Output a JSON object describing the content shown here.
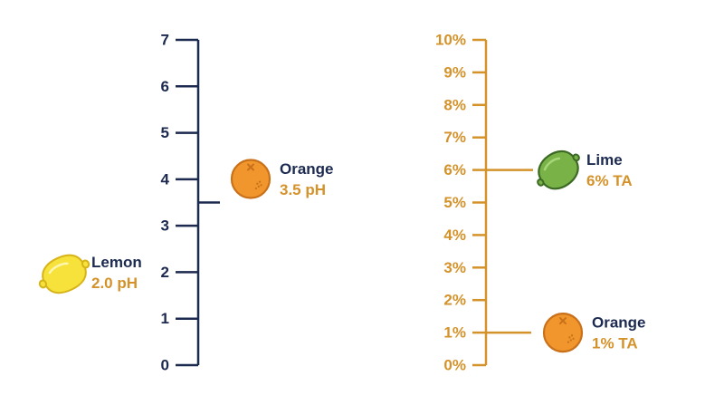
{
  "colors": {
    "navy": "#1c2a4f",
    "gold": "#d4922a",
    "orange_fruit": "#f0962c",
    "orange_outline": "#c9701a",
    "lemon_fill": "#f7e23c",
    "lemon_outline": "#d6b419",
    "lime_fill": "#79b246",
    "lime_outline": "#3c6a25"
  },
  "ph_scale": {
    "ticks": [
      "0",
      "1",
      "2",
      "3",
      "4",
      "5",
      "6",
      "7"
    ],
    "min": 0,
    "max": 7,
    "markers": [
      {
        "name": "Lemon",
        "value_label": "2.0 pH",
        "value": 2.0,
        "fruit": "lemon-icon"
      },
      {
        "name": "Orange",
        "value_label": "3.5 pH",
        "value": 3.5,
        "fruit": "orange-icon"
      }
    ]
  },
  "ta_scale": {
    "ticks": [
      "0%",
      "1%",
      "2%",
      "3%",
      "4%",
      "5%",
      "6%",
      "7%",
      "8%",
      "9%",
      "10%"
    ],
    "min": 0,
    "max": 10,
    "markers": [
      {
        "name": "Lime",
        "value_label": "6% TA",
        "value": 6,
        "fruit": "lime-icon"
      },
      {
        "name": "Orange",
        "value_label": "1% TA",
        "value": 1,
        "fruit": "orange-icon"
      }
    ]
  }
}
